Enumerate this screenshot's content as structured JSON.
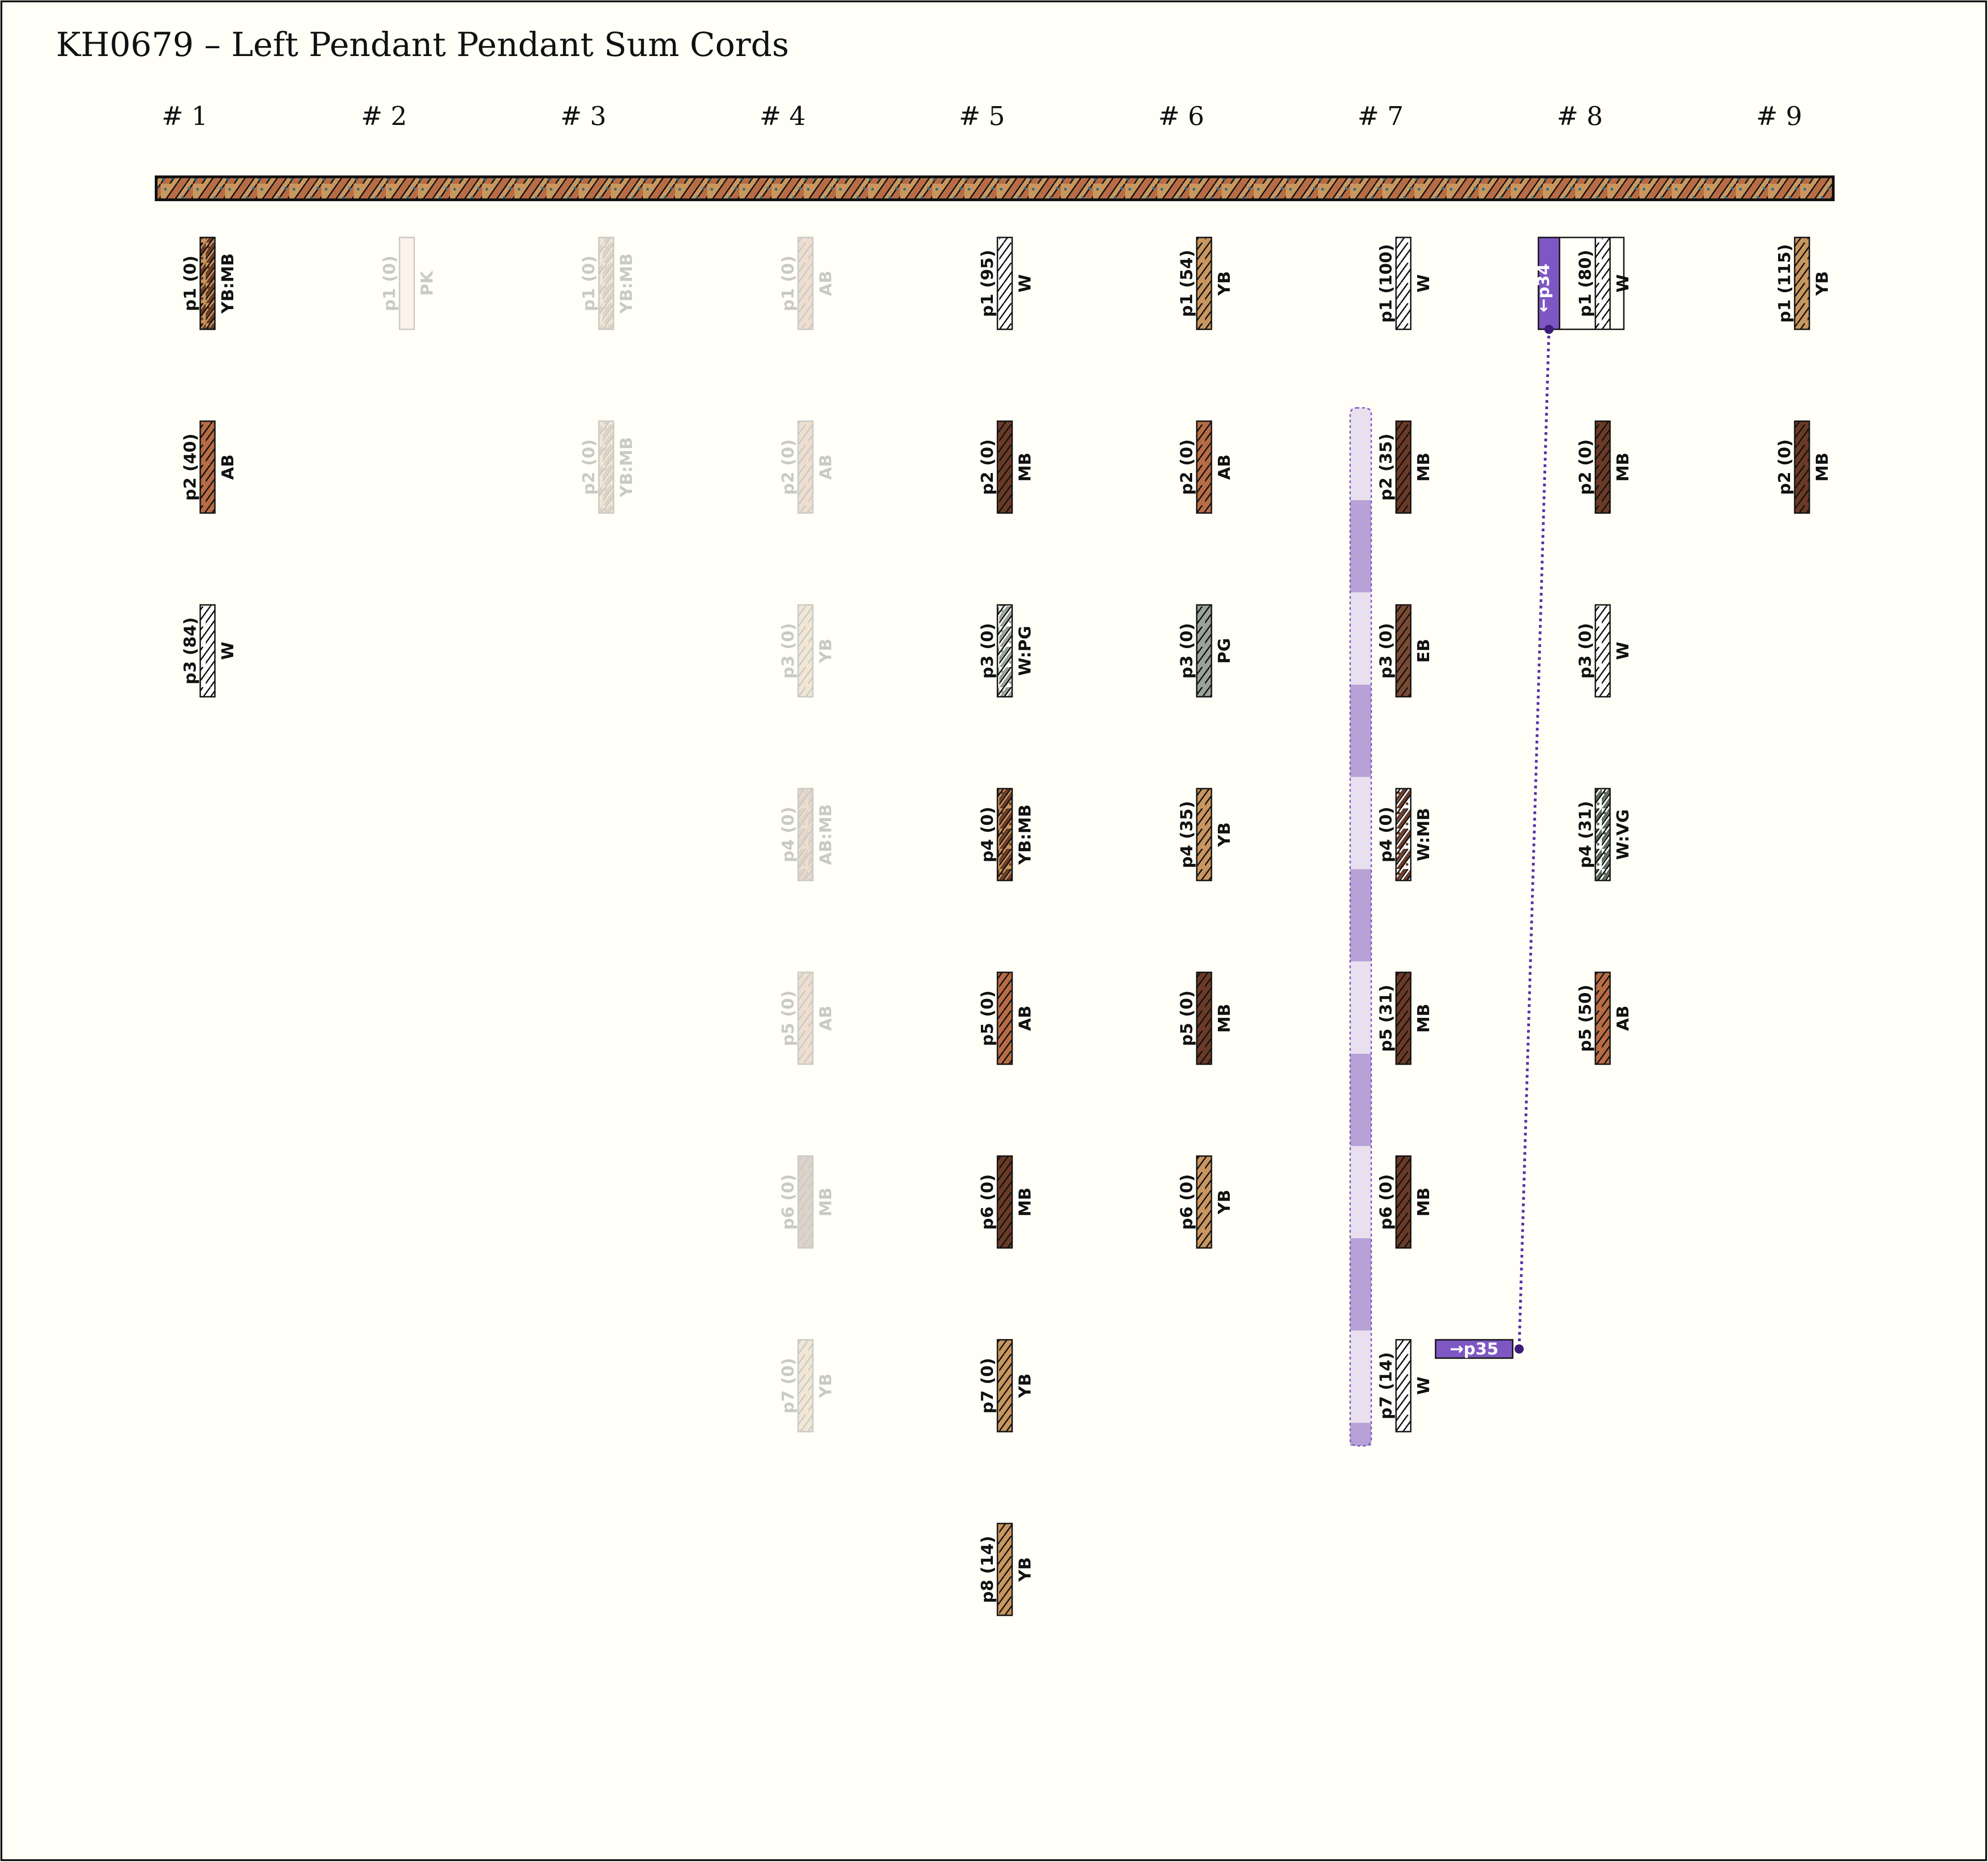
{
  "title": "KH0679 – Left Pendant Pendant Sum Cords",
  "colors": {
    "background": "#fffff8",
    "AB": "#b86c45",
    "MB": "#6b3a26",
    "YB": "#c8965e",
    "W": "#ffffff",
    "PG": "#9aa39a",
    "EB": "#7a4a33",
    "PK": "#f3c9b8",
    "VG": "#5c6a5c",
    "speckle": "#2f6b84",
    "link": "#5b2fa6",
    "link_fill": "#7e57c2",
    "band_light": "#e8e0ee",
    "band_dark": "#b7a1d6"
  },
  "groups": [
    {
      "label": "# 1",
      "cords": [
        {
          "label": "p1 (0)",
          "color": "YB:MB",
          "pattern": "mottled"
        },
        {
          "label": "p2 (40)",
          "color": "AB"
        },
        {
          "label": "p3 (84)",
          "color": "W"
        }
      ]
    },
    {
      "label": "# 2",
      "cords": [
        {
          "label": "p1 (0)",
          "color": "PK",
          "faded": true,
          "pattern": "plain"
        }
      ]
    },
    {
      "label": "# 3",
      "cords": [
        {
          "label": "p1 (0)",
          "color": "YB:MB",
          "faded": true
        },
        {
          "label": "p2 (0)",
          "color": "YB:MB",
          "faded": true
        }
      ]
    },
    {
      "label": "# 4",
      "cords": [
        {
          "label": "p1 (0)",
          "color": "AB",
          "faded": true
        },
        {
          "label": "p2 (0)",
          "color": "AB",
          "faded": true
        },
        {
          "label": "p3 (0)",
          "color": "YB",
          "faded": true
        },
        {
          "label": "p4 (0)",
          "color": "AB:MB",
          "faded": true
        },
        {
          "label": "p5 (0)",
          "color": "AB",
          "faded": true
        },
        {
          "label": "p6 (0)",
          "color": "MB",
          "faded": true
        },
        {
          "label": "p7 (0)",
          "color": "YB",
          "faded": true
        }
      ]
    },
    {
      "label": "# 5",
      "cords": [
        {
          "label": "p1 (95)",
          "color": "W"
        },
        {
          "label": "p2 (0)",
          "color": "MB"
        },
        {
          "label": "p3 (0)",
          "color": "W:PG",
          "pattern": "mottled"
        },
        {
          "label": "p4 (0)",
          "color": "YB:MB",
          "pattern": "mottled"
        },
        {
          "label": "p5 (0)",
          "color": "AB"
        },
        {
          "label": "p6 (0)",
          "color": "MB"
        },
        {
          "label": "p7 (0)",
          "color": "YB"
        },
        {
          "label": "p8 (14)",
          "color": "YB"
        }
      ]
    },
    {
      "label": "# 6",
      "cords": [
        {
          "label": "p1 (54)",
          "color": "YB"
        },
        {
          "label": "p2 (0)",
          "color": "AB"
        },
        {
          "label": "p3 (0)",
          "color": "PG"
        },
        {
          "label": "p4 (35)",
          "color": "YB"
        },
        {
          "label": "p5 (0)",
          "color": "MB"
        },
        {
          "label": "p6 (0)",
          "color": "YB"
        }
      ]
    },
    {
      "label": "# 7",
      "cords": [
        {
          "label": "p1 (100)",
          "color": "W"
        },
        {
          "label": "p2 (35)",
          "color": "MB"
        },
        {
          "label": "p3 (0)",
          "color": "EB"
        },
        {
          "label": "p4 (0)",
          "color": "W:MB",
          "pattern": "mottled"
        },
        {
          "label": "p5 (31)",
          "color": "MB"
        },
        {
          "label": "p6 (0)",
          "color": "MB"
        },
        {
          "label": "p7 (14)",
          "color": "W"
        }
      ]
    },
    {
      "label": "# 8",
      "cords": [
        {
          "label": "p1 (80)",
          "color": "W"
        },
        {
          "label": "p2 (0)",
          "color": "MB"
        },
        {
          "label": "p3 (0)",
          "color": "W"
        },
        {
          "label": "p4 (31)",
          "color": "W:VG",
          "pattern": "mottled"
        },
        {
          "label": "p5 (50)",
          "color": "AB"
        }
      ]
    },
    {
      "label": "# 9",
      "cords": [
        {
          "label": "p1 (115)",
          "color": "YB"
        },
        {
          "label": "p2 (0)",
          "color": "MB"
        }
      ]
    }
  ],
  "sum_links": {
    "left_tag": "←p34",
    "right_tag": "→p35"
  }
}
